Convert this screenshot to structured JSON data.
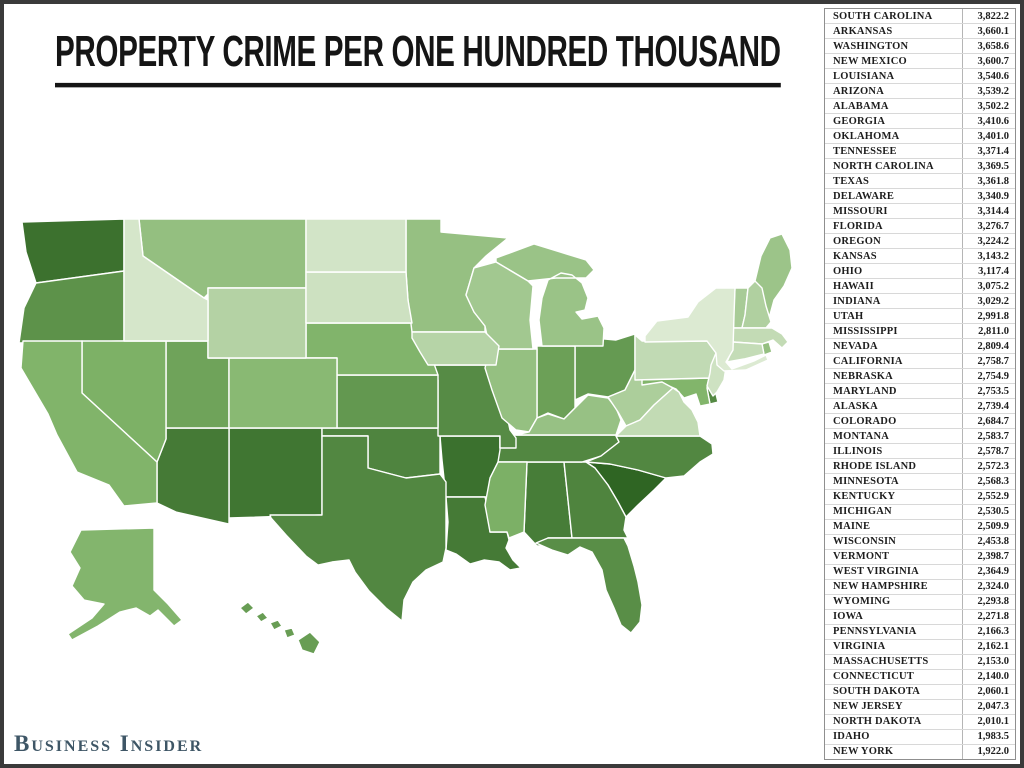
{
  "title": "PROPERTY CRIME PER ONE HUNDRED THOUSAND",
  "source_label": "Business Insider",
  "map": {
    "color_scale": {
      "low": "#dcead2",
      "mid": "#7fb368",
      "high": "#2f6523"
    },
    "min_value": 1922.0,
    "max_value": 3822.2
  },
  "chart_data": {
    "type": "choropleth_map",
    "title": "PROPERTY CRIME PER ONE HUNDRED THOUSAND",
    "unit": "property crimes per 100,000 residents",
    "legend_position": "none",
    "states": [
      {
        "name": "SOUTH CAROLINA",
        "value": 3822.2
      },
      {
        "name": "ARKANSAS",
        "value": 3660.1
      },
      {
        "name": "WASHINGTON",
        "value": 3658.6
      },
      {
        "name": "NEW MEXICO",
        "value": 3600.7
      },
      {
        "name": "LOUISIANA",
        "value": 3540.6
      },
      {
        "name": "ARIZONA",
        "value": 3539.2
      },
      {
        "name": "ALABAMA",
        "value": 3502.2
      },
      {
        "name": "GEORGIA",
        "value": 3410.6
      },
      {
        "name": "OKLAHOMA",
        "value": 3401.0
      },
      {
        "name": "TENNESSEE",
        "value": 3371.4
      },
      {
        "name": "NORTH CAROLINA",
        "value": 3369.5
      },
      {
        "name": "TEXAS",
        "value": 3361.8
      },
      {
        "name": "DELAWARE",
        "value": 3340.9
      },
      {
        "name": "MISSOURI",
        "value": 3314.4
      },
      {
        "name": "FLORIDA",
        "value": 3276.7
      },
      {
        "name": "OREGON",
        "value": 3224.2
      },
      {
        "name": "KANSAS",
        "value": 3143.2
      },
      {
        "name": "OHIO",
        "value": 3117.4
      },
      {
        "name": "HAWAII",
        "value": 3075.2
      },
      {
        "name": "INDIANA",
        "value": 3029.2
      },
      {
        "name": "UTAH",
        "value": 2991.8
      },
      {
        "name": "MISSISSIPPI",
        "value": 2811.0
      },
      {
        "name": "NEVADA",
        "value": 2809.4
      },
      {
        "name": "CALIFORNIA",
        "value": 2758.7
      },
      {
        "name": "NEBRASKA",
        "value": 2754.9
      },
      {
        "name": "MARYLAND",
        "value": 2753.5
      },
      {
        "name": "ALASKA",
        "value": 2739.4
      },
      {
        "name": "COLORADO",
        "value": 2684.7
      },
      {
        "name": "MONTANA",
        "value": 2583.7
      },
      {
        "name": "ILLINOIS",
        "value": 2578.7
      },
      {
        "name": "RHODE ISLAND",
        "value": 2572.3
      },
      {
        "name": "MINNESOTA",
        "value": 2568.3
      },
      {
        "name": "KENTUCKY",
        "value": 2552.9
      },
      {
        "name": "MICHIGAN",
        "value": 2530.5
      },
      {
        "name": "MAINE",
        "value": 2509.9
      },
      {
        "name": "WISCONSIN",
        "value": 2453.8
      },
      {
        "name": "VERMONT",
        "value": 2398.7
      },
      {
        "name": "WEST VIRGINIA",
        "value": 2364.9
      },
      {
        "name": "NEW HAMPSHIRE",
        "value": 2324.0
      },
      {
        "name": "WYOMING",
        "value": 2293.8
      },
      {
        "name": "IOWA",
        "value": 2271.8
      },
      {
        "name": "PENNSYLVANIA",
        "value": 2166.3
      },
      {
        "name": "VIRGINIA",
        "value": 2162.1
      },
      {
        "name": "MASSACHUSETTS",
        "value": 2153.0
      },
      {
        "name": "CONNECTICUT",
        "value": 2140.0
      },
      {
        "name": "SOUTH DAKOTA",
        "value": 2060.1
      },
      {
        "name": "NEW JERSEY",
        "value": 2047.3
      },
      {
        "name": "NORTH DAKOTA",
        "value": 2010.1
      },
      {
        "name": "IDAHO",
        "value": 1983.5
      },
      {
        "name": "NEW YORK",
        "value": 1922.0
      }
    ]
  }
}
